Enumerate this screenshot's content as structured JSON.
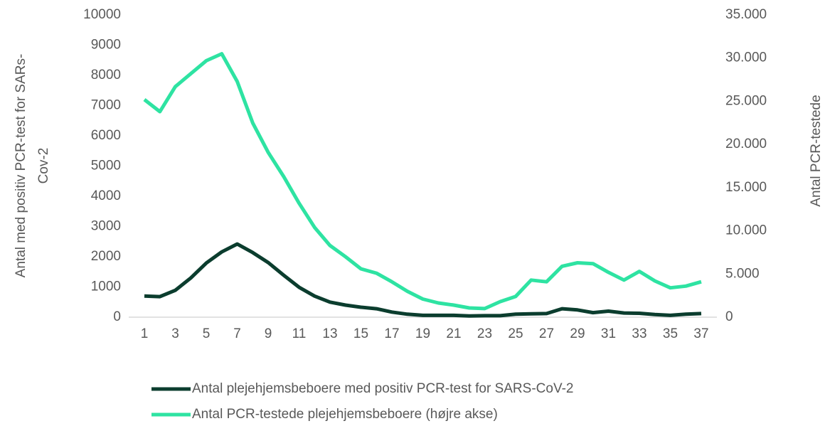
{
  "chart_data": {
    "type": "line",
    "categories": [
      "1",
      null,
      "3",
      null,
      "5",
      null,
      "7",
      null,
      "9",
      null,
      "11",
      null,
      "13",
      null,
      "15",
      null,
      "17",
      null,
      "19",
      null,
      "21",
      null,
      "23",
      null,
      "25",
      null,
      "27",
      null,
      "29",
      null,
      "31",
      null,
      "33",
      null,
      "35",
      null,
      "37"
    ],
    "ylabel_lines": [
      "Antal med positiv PCR-test for SARs-",
      "Cov-2"
    ],
    "y2label": "Antal PCR-testede",
    "ylim": [
      0,
      10000
    ],
    "yticks": [
      0,
      1000,
      2000,
      3000,
      4000,
      5000,
      6000,
      7000,
      8000,
      9000,
      10000
    ],
    "y2lim": [
      0,
      35000
    ],
    "y2ticks": [
      0,
      {
        "value": 5000,
        "label": "5.000"
      },
      {
        "value": 10000,
        "label": "10.000"
      },
      {
        "value": 15000,
        "label": "15.000"
      },
      {
        "value": 20000,
        "label": "20.000"
      },
      {
        "value": 25000,
        "label": "25.000"
      },
      {
        "value": 30000,
        "label": "30.000"
      },
      {
        "value": 35000,
        "label": "35.000"
      }
    ],
    "grid": false,
    "legend": "bottom",
    "series": [
      {
        "name": "Antal plejehjemsbeboere med positiv PCR-test for SARS-CoV-2",
        "color": "#0b3d2e",
        "axis": "y",
        "values": [
          700,
          680,
          890,
          1300,
          1790,
          2160,
          2420,
          2140,
          1810,
          1390,
          990,
          700,
          500,
          400,
          330,
          280,
          170,
          100,
          60,
          60,
          60,
          40,
          50,
          50,
          100,
          110,
          120,
          280,
          240,
          150,
          200,
          140,
          130,
          90,
          60,
          100,
          120
        ]
      },
      {
        "name": "Antal PCR-testede plejehjemsbeboere (højre akse)",
        "color": "#2ee3a2",
        "axis": "y2",
        "values": [
          25200,
          23800,
          26700,
          28200,
          29700,
          30500,
          27300,
          22500,
          19100,
          16300,
          13200,
          10400,
          8300,
          7000,
          5600,
          5100,
          4100,
          3000,
          2100,
          1650,
          1400,
          1070,
          1000,
          1800,
          2400,
          4300,
          4100,
          5900,
          6300,
          6200,
          5200,
          4300,
          5300,
          4200,
          3400,
          3600,
          4100
        ]
      }
    ]
  }
}
